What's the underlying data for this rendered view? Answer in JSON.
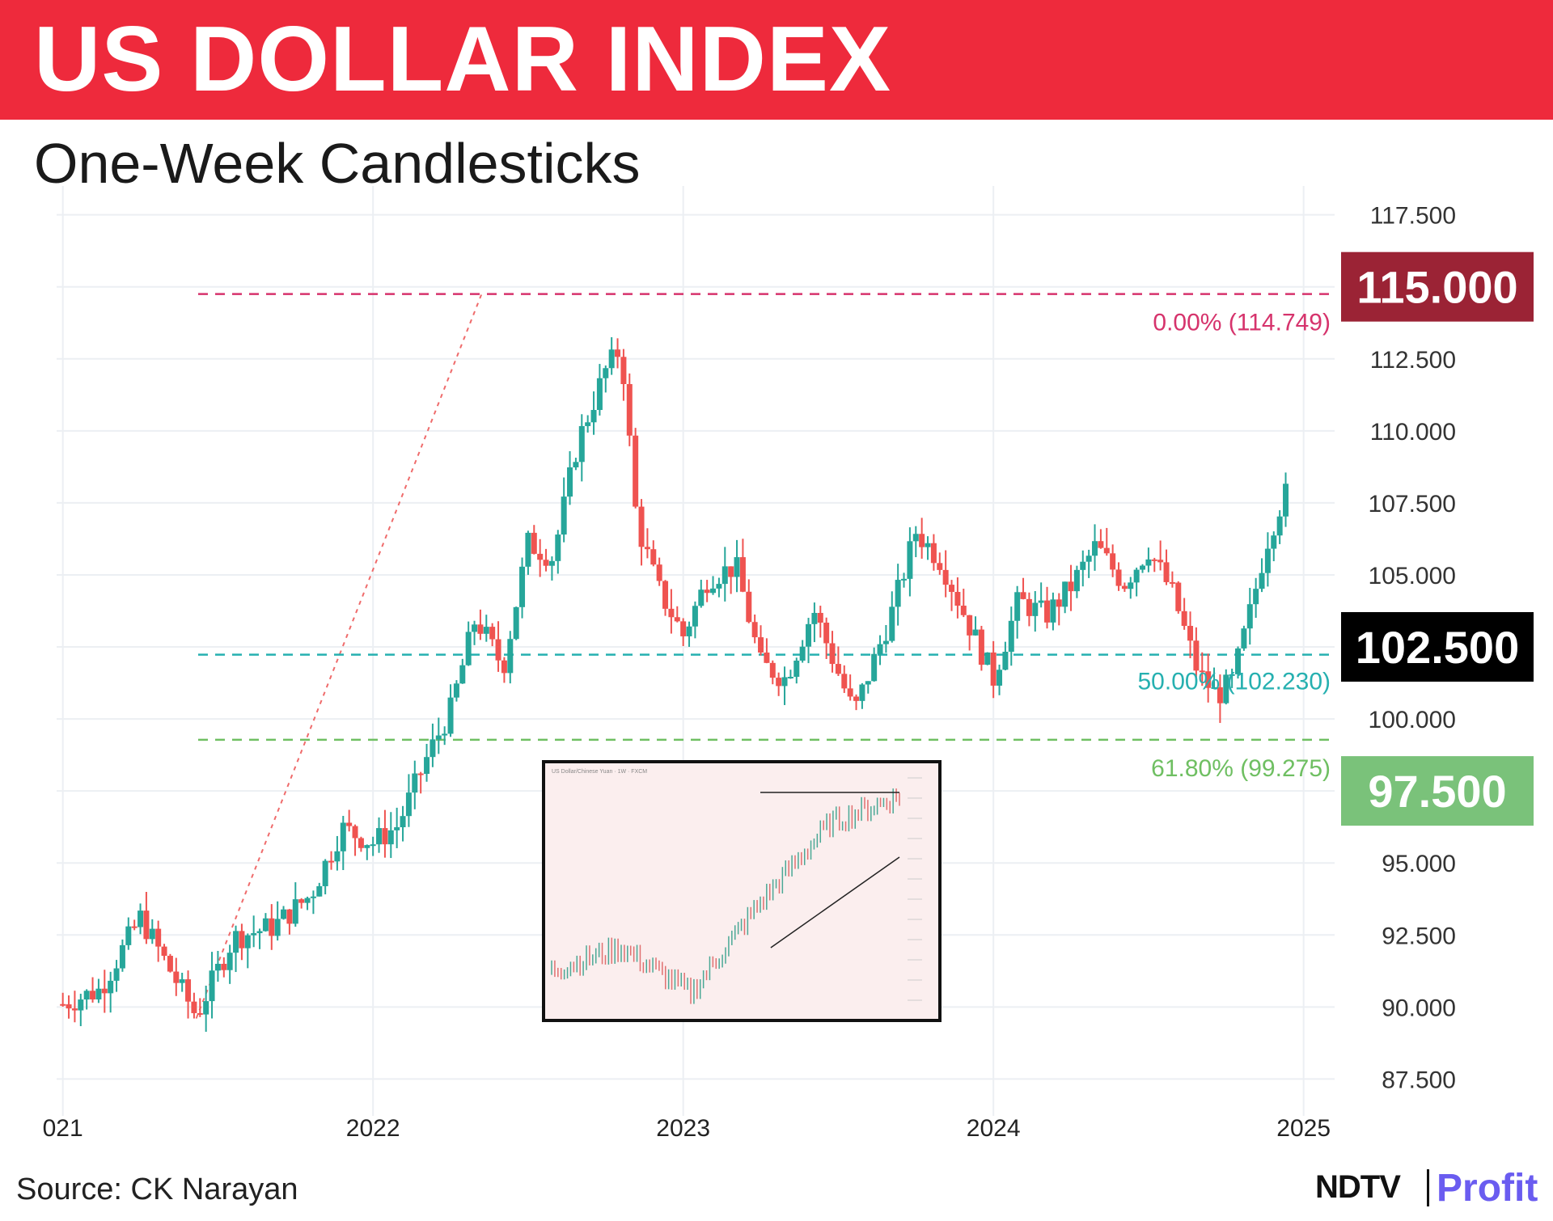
{
  "header": {
    "title": "US DOLLAR INDEX",
    "subtitle": "One-Week Candlesticks"
  },
  "footer": {
    "source": "Source: CK Narayan",
    "logo_ndtv": "NDTV",
    "logo_profit": "Profit"
  },
  "colors": {
    "banner": "#ee2a3c",
    "up": "#26a69a",
    "down": "#ef5350",
    "fib_top": "#d6336c",
    "fib_mid": "#26b0b0",
    "fib_low": "#6fbf62",
    "tag_115": "#9b2335",
    "tag_1025": "#000000",
    "tag_975": "#7ac27a"
  },
  "chart_data": {
    "type": "candlestick",
    "title": "",
    "xlabel": "",
    "ylabel": "",
    "x_range": [
      2020.98,
      2025.1
    ],
    "ylim": [
      86.5,
      118.5
    ],
    "y_ticks": [
      "87.500",
      "90.000",
      "92.500",
      "95.000",
      "97.500",
      "100.000",
      "102.500",
      "105.000",
      "107.500",
      "110.000",
      "112.500",
      "115.000",
      "117.500"
    ],
    "y_tick_values": [
      87.5,
      90,
      92.5,
      95,
      97.5,
      100,
      102.5,
      105,
      107.5,
      110,
      112.5,
      115,
      117.5
    ],
    "x_ticks": [
      "021",
      "2022",
      "2023",
      "2024",
      "2025"
    ],
    "x_tick_values": [
      2021.0,
      2022.0,
      2023.0,
      2024.0,
      2025.0
    ],
    "grid": true,
    "fib_levels": [
      {
        "label": "0.00% (114.749)",
        "value": 114.749
      },
      {
        "label": "50.00% (102.230)",
        "value": 102.23
      },
      {
        "label": "61.80% (99.275)",
        "value": 99.275
      }
    ],
    "price_tags": [
      {
        "label": "115.000",
        "value": 115.0
      },
      {
        "label": "102.500",
        "value": 102.5
      },
      {
        "label": "97.500",
        "value": 97.5
      }
    ],
    "trend_line": {
      "from": [
        2021.43,
        89.6
      ],
      "to": [
        2022.35,
        114.749
      ]
    },
    "close_series": [
      [
        2021.0,
        90.1
      ],
      [
        2021.12,
        90.6
      ],
      [
        2021.25,
        93.1
      ],
      [
        2021.35,
        91.2
      ],
      [
        2021.43,
        89.7
      ],
      [
        2021.55,
        92.4
      ],
      [
        2021.68,
        92.8
      ],
      [
        2021.8,
        93.9
      ],
      [
        2021.9,
        96.2
      ],
      [
        2022.0,
        95.7
      ],
      [
        2022.08,
        96.3
      ],
      [
        2022.18,
        98.8
      ],
      [
        2022.25,
        100.3
      ],
      [
        2022.33,
        103.5
      ],
      [
        2022.42,
        101.8
      ],
      [
        2022.5,
        106.1
      ],
      [
        2022.58,
        105.6
      ],
      [
        2022.66,
        109.6
      ],
      [
        2022.75,
        112.1
      ],
      [
        2022.8,
        112.9
      ],
      [
        2022.85,
        106.8
      ],
      [
        2022.92,
        104.5
      ],
      [
        2023.0,
        102.9
      ],
      [
        2023.08,
        104.9
      ],
      [
        2023.17,
        105.3
      ],
      [
        2023.25,
        101.9
      ],
      [
        2023.33,
        101.4
      ],
      [
        2023.42,
        103.8
      ],
      [
        2023.5,
        101.6
      ],
      [
        2023.55,
        100.2
      ],
      [
        2023.67,
        103.6
      ],
      [
        2023.75,
        106.5
      ],
      [
        2023.83,
        105.5
      ],
      [
        2023.92,
        103.3
      ],
      [
        2024.0,
        101.4
      ],
      [
        2024.08,
        104.1
      ],
      [
        2024.17,
        103.6
      ],
      [
        2024.25,
        104.6
      ],
      [
        2024.33,
        106.0
      ],
      [
        2024.42,
        104.7
      ],
      [
        2024.5,
        105.9
      ],
      [
        2024.58,
        104.3
      ],
      [
        2024.66,
        101.6
      ],
      [
        2024.72,
        100.8
      ],
      [
        2024.77,
        101.3
      ],
      [
        2024.83,
        103.8
      ],
      [
        2024.88,
        106.1
      ],
      [
        2024.92,
        107.3
      ],
      [
        2024.96,
        108.2
      ]
    ],
    "inset": {
      "title": "US Dollar/Chinese Yuan · 1W · FXCM",
      "close_series": [
        [
          0,
          6.45
        ],
        [
          0.2,
          6.55
        ],
        [
          0.4,
          6.35
        ],
        [
          0.6,
          6.75
        ],
        [
          0.8,
          7.1
        ],
        [
          1.0,
          7.22
        ]
      ],
      "annotations": [
        "horizontal resistance",
        "rising trendline"
      ]
    }
  }
}
